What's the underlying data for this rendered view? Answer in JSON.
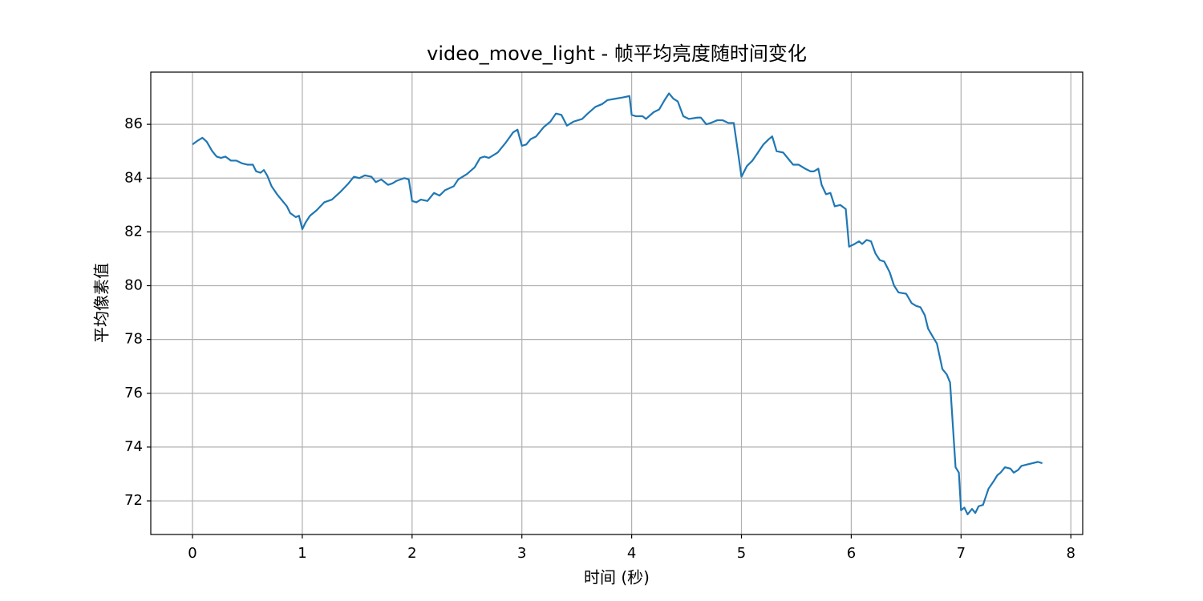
{
  "chart_data": {
    "type": "line",
    "title": "video_move_light - 帧平均亮度随时间变化",
    "xlabel": "时间 (秒)",
    "ylabel": "平均像素值",
    "color": "#1f77b4",
    "grid": true,
    "xlim": [
      -0.38,
      8.108
    ],
    "ylim": [
      70.75,
      87.94
    ],
    "xticks": [
      0,
      1,
      2,
      3,
      4,
      5,
      6,
      7,
      8
    ],
    "yticks": [
      72,
      74,
      76,
      78,
      80,
      82,
      84,
      86
    ],
    "x": [
      0,
      0.05,
      0.09,
      0.13,
      0.18,
      0.22,
      0.26,
      0.3,
      0.35,
      0.4,
      0.45,
      0.5,
      0.55,
      0.58,
      0.62,
      0.65,
      0.68,
      0.72,
      0.77,
      0.82,
      0.86,
      0.89,
      0.94,
      0.97,
      1.0,
      1.03,
      1.07,
      1.13,
      1.2,
      1.27,
      1.35,
      1.42,
      1.47,
      1.52,
      1.57,
      1.63,
      1.67,
      1.72,
      1.78,
      1.82,
      1.86,
      1.93,
      1.97,
      2.0,
      2.04,
      2.08,
      2.14,
      2.2,
      2.25,
      2.3,
      2.38,
      2.42,
      2.5,
      2.57,
      2.62,
      2.66,
      2.7,
      2.78,
      2.85,
      2.92,
      2.96,
      3.0,
      3.04,
      3.08,
      3.13,
      3.2,
      3.26,
      3.31,
      3.36,
      3.41,
      3.47,
      3.55,
      3.6,
      3.67,
      3.73,
      3.78,
      3.85,
      3.92,
      3.98,
      4.0,
      4.04,
      4.1,
      4.13,
      4.2,
      4.25,
      4.3,
      4.34,
      4.38,
      4.42,
      4.47,
      4.52,
      4.6,
      4.63,
      4.68,
      4.72,
      4.78,
      4.83,
      4.88,
      4.93,
      4.96,
      5.0,
      5.05,
      5.1,
      5.15,
      5.2,
      5.25,
      5.28,
      5.32,
      5.38,
      5.43,
      5.47,
      5.52,
      5.58,
      5.63,
      5.66,
      5.7,
      5.73,
      5.77,
      5.81,
      5.85,
      5.9,
      5.95,
      5.98,
      6.03,
      6.07,
      6.1,
      6.14,
      6.18,
      6.22,
      6.26,
      6.3,
      6.35,
      6.39,
      6.43,
      6.5,
      6.55,
      6.59,
      6.63,
      6.67,
      6.7,
      6.75,
      6.78,
      6.83,
      6.87,
      6.9,
      6.95,
      6.98,
      7.0,
      7.03,
      7.06,
      7.1,
      7.13,
      7.16,
      7.2,
      7.25,
      7.3,
      7.33,
      7.36,
      7.4,
      7.45,
      7.48,
      7.52,
      7.55,
      7.6,
      7.65,
      7.7,
      7.74
    ],
    "values": [
      85.25,
      85.4,
      85.5,
      85.35,
      85.0,
      84.8,
      84.75,
      84.8,
      84.65,
      84.65,
      84.55,
      84.5,
      84.5,
      84.25,
      84.2,
      84.3,
      84.1,
      83.7,
      83.4,
      83.15,
      82.95,
      82.7,
      82.55,
      82.6,
      82.1,
      82.35,
      82.6,
      82.8,
      83.1,
      83.2,
      83.5,
      83.8,
      84.05,
      84.0,
      84.1,
      84.05,
      83.85,
      83.95,
      83.75,
      83.8,
      83.9,
      84.0,
      83.95,
      83.15,
      83.1,
      83.2,
      83.15,
      83.45,
      83.35,
      83.55,
      83.7,
      83.95,
      84.15,
      84.4,
      84.75,
      84.8,
      84.75,
      84.95,
      85.3,
      85.7,
      85.8,
      85.2,
      85.25,
      85.45,
      85.55,
      85.9,
      86.1,
      86.4,
      86.35,
      85.95,
      86.1,
      86.2,
      86.4,
      86.65,
      86.75,
      86.9,
      86.95,
      87.0,
      87.05,
      86.35,
      86.3,
      86.3,
      86.2,
      86.45,
      86.55,
      86.9,
      87.15,
      86.95,
      86.85,
      86.3,
      86.2,
      86.25,
      86.25,
      86.0,
      86.05,
      86.15,
      86.15,
      86.05,
      86.05,
      85.2,
      84.05,
      84.45,
      84.65,
      84.95,
      85.25,
      85.45,
      85.55,
      85.0,
      84.95,
      84.7,
      84.5,
      84.5,
      84.35,
      84.25,
      84.25,
      84.35,
      83.75,
      83.4,
      83.45,
      82.95,
      83.0,
      82.85,
      81.45,
      81.55,
      81.65,
      81.55,
      81.7,
      81.65,
      81.2,
      80.95,
      80.9,
      80.5,
      80.0,
      79.75,
      79.7,
      79.35,
      79.25,
      79.2,
      78.9,
      78.4,
      78.05,
      77.85,
      76.9,
      76.7,
      76.4,
      73.25,
      73.05,
      71.65,
      71.75,
      71.5,
      71.7,
      71.55,
      71.8,
      71.85,
      72.45,
      72.75,
      72.95,
      73.05,
      73.25,
      73.2,
      73.05,
      73.15,
      73.3,
      73.35,
      73.4,
      73.45,
      73.4
    ]
  }
}
